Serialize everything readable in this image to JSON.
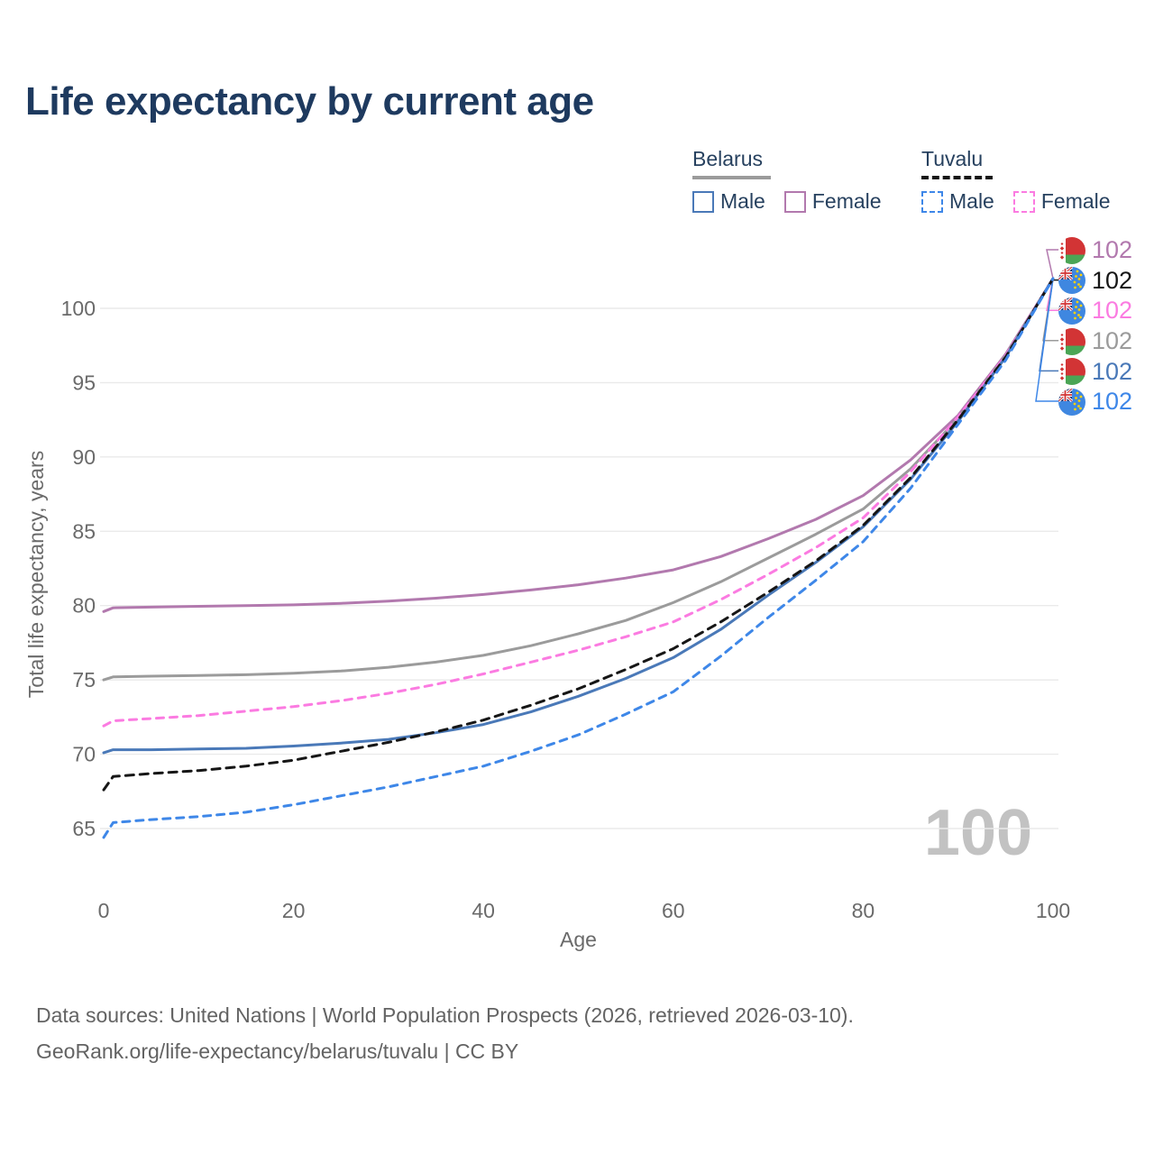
{
  "title": "Life expectancy by current age",
  "legend": {
    "belarus": {
      "name": "Belarus",
      "male": "Male",
      "female": "Female"
    },
    "tuvalu": {
      "name": "Tuvalu",
      "male": "Male",
      "female": "Female"
    }
  },
  "colors": {
    "belarus_male": "#4a79b8",
    "belarus_female": "#b279ae",
    "belarus_total": "#9b9b9b",
    "tuvalu_male": "#3e87e8",
    "tuvalu_female": "#fb7be1",
    "tuvalu_total": "#161616",
    "title_text": "#1e3a5f",
    "axis_text": "#6a6a6a",
    "grid": "#eaeaea",
    "watermark": "#c2c2c2"
  },
  "chart_data": {
    "type": "line",
    "title": "Life expectancy by current age",
    "xlabel": "Age",
    "ylabel": "Total life expectancy, years",
    "xlim": [
      0,
      100
    ],
    "ylim": [
      61,
      103.5
    ],
    "x_ticks": [
      0,
      20,
      40,
      60,
      80,
      100
    ],
    "y_ticks": [
      65,
      70,
      75,
      80,
      85,
      90,
      95,
      100
    ],
    "grid": "horizontal-only",
    "legend_position": "top-right",
    "watermark": "100",
    "x": [
      0,
      1,
      5,
      10,
      15,
      20,
      25,
      30,
      35,
      40,
      45,
      50,
      55,
      60,
      65,
      70,
      75,
      80,
      85,
      90,
      95,
      100
    ],
    "series": [
      {
        "id": "belarus_female",
        "name": "Belarus — Female",
        "country": "Belarus",
        "sex": "Female",
        "style": "solid",
        "color": "#b279ae",
        "flag": "belarus",
        "end_label": "102",
        "values": [
          79.6,
          79.85,
          79.9,
          79.95,
          80.0,
          80.05,
          80.15,
          80.3,
          80.5,
          80.75,
          81.05,
          81.4,
          81.85,
          82.4,
          83.3,
          84.5,
          85.8,
          87.4,
          89.8,
          92.8,
          96.9,
          102
        ]
      },
      {
        "id": "belarus_total",
        "name": "Belarus — Both sexes",
        "country": "Belarus",
        "sex": "Both",
        "style": "solid",
        "color": "#9b9b9b",
        "flag": "belarus",
        "end_label": "102",
        "values": [
          75.0,
          75.2,
          75.25,
          75.3,
          75.35,
          75.45,
          75.6,
          75.85,
          76.2,
          76.65,
          77.3,
          78.1,
          79.0,
          80.2,
          81.6,
          83.2,
          84.8,
          86.5,
          89.2,
          92.6,
          96.8,
          102
        ]
      },
      {
        "id": "tuvalu_female",
        "name": "Tuvalu — Female",
        "country": "Tuvalu",
        "sex": "Female",
        "style": "dashed",
        "color": "#fb7be1",
        "flag": "tuvalu",
        "end_label": "102",
        "values": [
          71.9,
          72.25,
          72.4,
          72.6,
          72.9,
          73.2,
          73.6,
          74.1,
          74.7,
          75.4,
          76.2,
          77.0,
          77.9,
          78.9,
          80.4,
          82.1,
          83.9,
          85.9,
          89.0,
          92.7,
          96.8,
          102
        ]
      },
      {
        "id": "belarus_male",
        "name": "Belarus — Male",
        "country": "Belarus",
        "sex": "Male",
        "style": "solid",
        "color": "#4a79b8",
        "flag": "belarus",
        "end_label": "102",
        "values": [
          70.1,
          70.3,
          70.3,
          70.35,
          70.4,
          70.55,
          70.75,
          71.0,
          71.45,
          72.0,
          72.85,
          73.9,
          75.1,
          76.5,
          78.4,
          80.7,
          82.9,
          85.3,
          88.5,
          92.4,
          96.7,
          102
        ]
      },
      {
        "id": "tuvalu_total",
        "name": "Tuvalu — Both sexes",
        "country": "Tuvalu",
        "sex": "Both",
        "style": "dashed",
        "color": "#161616",
        "flag": "tuvalu",
        "end_label": "102",
        "values": [
          67.6,
          68.5,
          68.7,
          68.9,
          69.2,
          69.6,
          70.2,
          70.8,
          71.5,
          72.3,
          73.3,
          74.4,
          75.7,
          77.1,
          78.9,
          80.9,
          83.0,
          85.4,
          88.6,
          92.5,
          96.7,
          102
        ]
      },
      {
        "id": "tuvalu_male",
        "name": "Tuvalu — Male",
        "country": "Tuvalu",
        "sex": "Male",
        "style": "dashed",
        "color": "#3e87e8",
        "flag": "tuvalu",
        "end_label": "102",
        "values": [
          64.4,
          65.4,
          65.6,
          65.8,
          66.1,
          66.6,
          67.2,
          67.8,
          68.5,
          69.2,
          70.2,
          71.3,
          72.7,
          74.2,
          76.6,
          79.2,
          81.7,
          84.3,
          87.9,
          92.2,
          96.5,
          102
        ]
      }
    ],
    "end_label_order": [
      "belarus_female",
      "tuvalu_total",
      "tuvalu_female",
      "belarus_total",
      "belarus_male",
      "tuvalu_male"
    ]
  },
  "footer": {
    "line1": "Data sources: United Nations | World Population Prospects (2026, retrieved 2026-03-10).",
    "line2": "GeoRank.org/life-expectancy/belarus/tuvalu | CC BY"
  }
}
